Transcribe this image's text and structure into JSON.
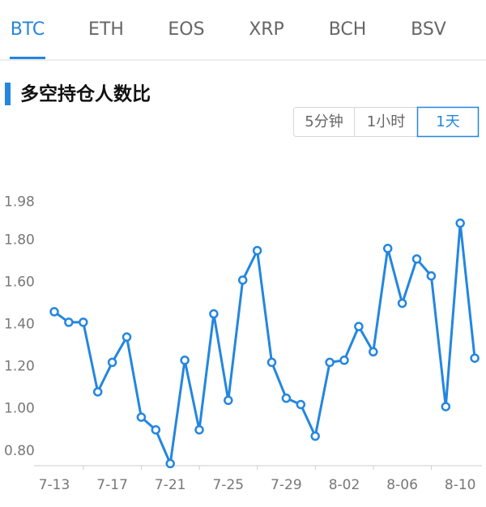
{
  "tabs": {
    "items": [
      "BTC",
      "ETH",
      "EOS",
      "XRP",
      "BCH",
      "BSV"
    ],
    "active": 0
  },
  "section": {
    "title": "多空持仓人数比"
  },
  "range_buttons": {
    "items": [
      "5分钟",
      "1小时",
      "1天"
    ],
    "active": 2
  },
  "chart_data": {
    "type": "line",
    "categories": [
      "7-13",
      null,
      null,
      null,
      "7-17",
      null,
      null,
      null,
      "7-21",
      null,
      null,
      null,
      "7-25",
      null,
      null,
      null,
      "7-29",
      null,
      null,
      null,
      "8-02",
      null,
      null,
      null,
      "8-06",
      null,
      null,
      null,
      "8-10",
      null
    ],
    "series": [
      {
        "color": "#2386e0",
        "values": [
          1.46,
          1.41,
          1.41,
          1.08,
          1.22,
          1.34,
          0.96,
          0.9,
          0.74,
          1.23,
          0.9,
          1.45,
          1.04,
          1.61,
          1.75,
          1.22,
          1.05,
          1.02,
          0.87,
          1.22,
          1.23,
          1.39,
          1.27,
          1.76,
          1.5,
          1.71,
          1.63,
          1.01,
          1.88,
          1.24
        ]
      }
    ],
    "ylim": [
      0.73,
      1.98
    ],
    "yticks": [
      {
        "value": 0.8,
        "label": "0.80"
      },
      {
        "value": 1.0,
        "label": "1.00"
      },
      {
        "value": 1.2,
        "label": "1.20"
      },
      {
        "value": 1.4,
        "label": "1.40"
      },
      {
        "value": 1.6,
        "label": "1.60"
      },
      {
        "value": 1.8,
        "label": "1.80"
      },
      1.98
    ],
    "grid": false
  }
}
